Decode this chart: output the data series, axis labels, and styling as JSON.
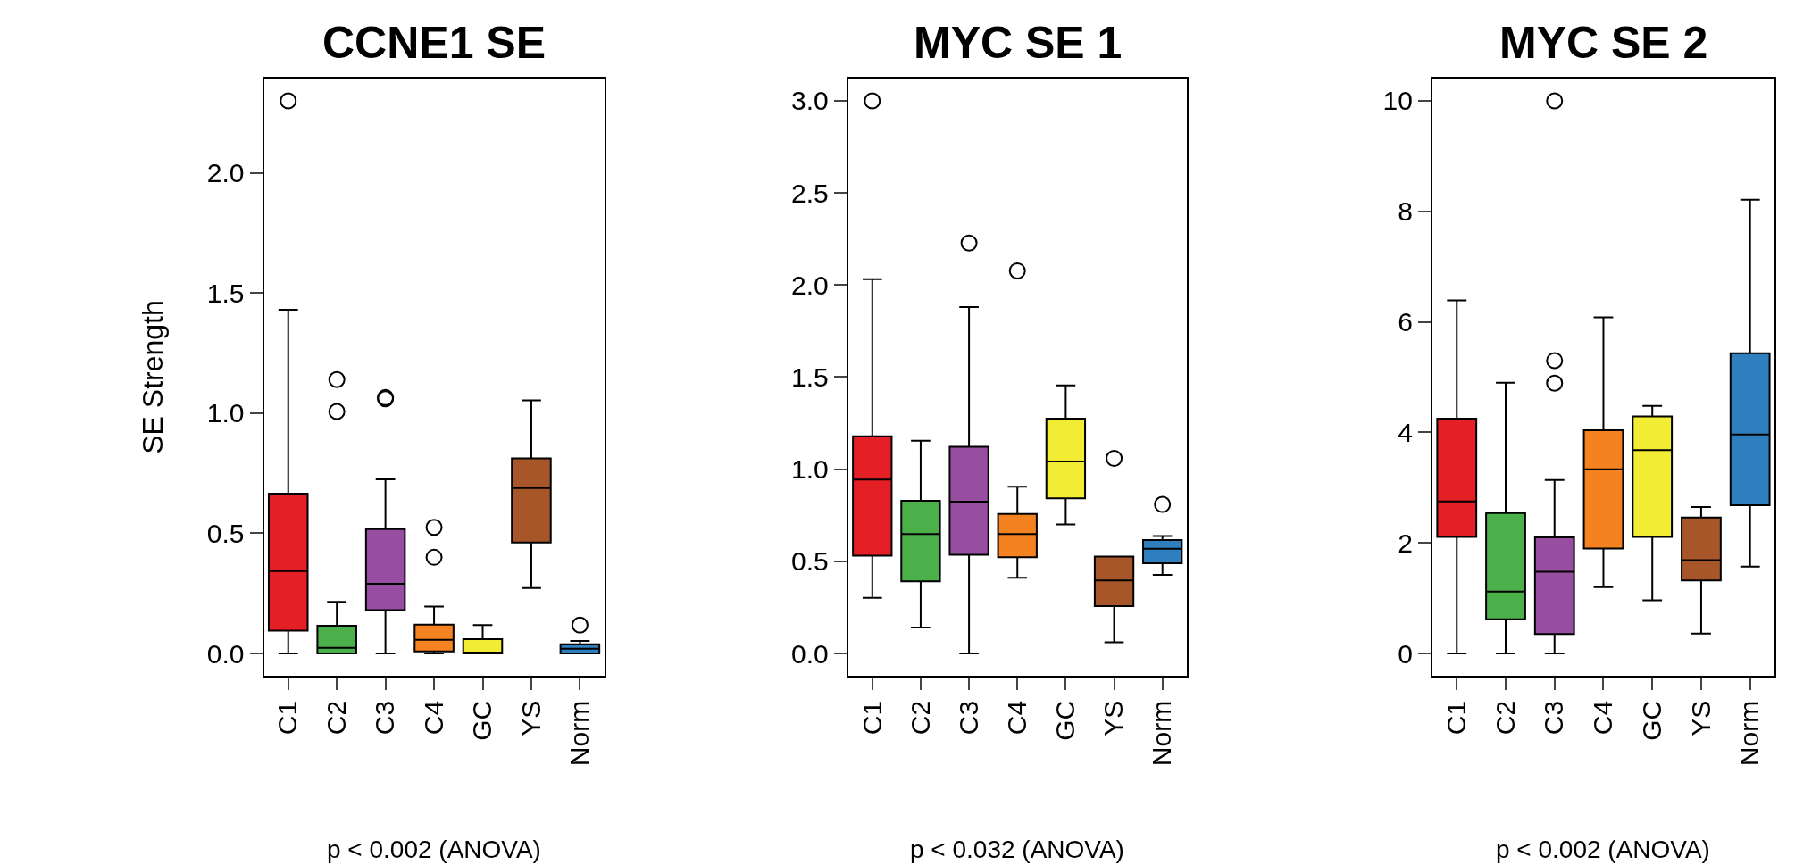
{
  "chart_data": [
    {
      "type": "box",
      "title": "CCNE1 SE",
      "xlabel": "p < 0.002 (ANOVA)",
      "ylabel": "SE Strength",
      "categories": [
        "C1",
        "C2",
        "C3",
        "C4",
        "GC",
        "YS",
        "Norm"
      ],
      "colors": [
        "#e41f26",
        "#4bb04a",
        "#984ea0",
        "#f58220",
        "#f2ec34",
        "#a65628",
        "#2f7fbf"
      ],
      "boxes": [
        {
          "low": 0,
          "q1": 0.095,
          "median": 0.343,
          "q3": 0.665,
          "high": 1.43,
          "outliers": [
            2.3
          ]
        },
        {
          "low": 0,
          "q1": 0,
          "median": 0.023,
          "q3": 0.115,
          "high": 0.215,
          "outliers": [
            1.14,
            1.007
          ]
        },
        {
          "low": 0,
          "q1": 0.18,
          "median": 0.29,
          "q3": 0.517,
          "high": 0.725,
          "outliers": [
            1.06,
            1.065
          ]
        },
        {
          "low": 0,
          "q1": 0.008,
          "median": 0.057,
          "q3": 0.12,
          "high": 0.195,
          "outliers": [
            0.525,
            0.4
          ]
        },
        {
          "low": 0,
          "q1": 0,
          "median": 0,
          "q3": 0.06,
          "high": 0.118
        },
        {
          "low": 0.272,
          "q1": 0.462,
          "median": 0.688,
          "q3": 0.812,
          "high": 1.053
        },
        {
          "low": 0,
          "q1": 0,
          "median": 0.02,
          "q3": 0.038,
          "high": 0.052,
          "outliers": [
            0.118
          ]
        }
      ],
      "ylim": [
        -0.092,
        2.392
      ],
      "yticks": [
        {
          "value": 0,
          "label": "0.0"
        },
        {
          "value": 0.5,
          "label": "0.5"
        },
        {
          "value": 1,
          "label": "1.0"
        },
        {
          "value": 1.5,
          "label": "1.5"
        },
        {
          "value": 2,
          "label": "2.0"
        }
      ],
      "marker": "circle"
    },
    {
      "type": "box",
      "title": "MYC SE 1",
      "xlabel": "p < 0.032 (ANOVA)",
      "categories": [
        "C1",
        "C2",
        "C3",
        "C4",
        "GC",
        "YS",
        "Norm"
      ],
      "colors": [
        "#e41f26",
        "#4bb04a",
        "#984ea0",
        "#f58220",
        "#f2ec34",
        "#a65628",
        "#2f7fbf"
      ],
      "boxes": [
        {
          "low": 0.302,
          "q1": 0.531,
          "median": 0.944,
          "q3": 1.179,
          "high": 2.032,
          "outliers": [
            3.0
          ]
        },
        {
          "low": 0.141,
          "q1": 0.392,
          "median": 0.648,
          "q3": 0.829,
          "high": 1.155
        },
        {
          "low": 0,
          "q1": 0.535,
          "median": 0.824,
          "q3": 1.122,
          "high": 1.88,
          "outliers": [
            2.228
          ]
        },
        {
          "low": 0.411,
          "q1": 0.522,
          "median": 0.648,
          "q3": 0.757,
          "high": 0.905,
          "outliers": [
            2.077
          ]
        },
        {
          "low": 0.7,
          "q1": 0.842,
          "median": 1.042,
          "q3": 1.275,
          "high": 1.455
        },
        {
          "low": 0.061,
          "q1": 0.257,
          "median": 0.396,
          "q3": 0.526,
          "high": 0.526,
          "outliers": [
            1.059
          ]
        },
        {
          "low": 0.426,
          "q1": 0.489,
          "median": 0.568,
          "q3": 0.616,
          "high": 0.637,
          "outliers": [
            0.809
          ]
        }
      ],
      "ylim": [
        -0.12,
        3.12
      ],
      "yticks": [
        {
          "value": 0,
          "label": "0.0"
        },
        {
          "value": 0.5,
          "label": "0.5"
        },
        {
          "value": 1,
          "label": "1.0"
        },
        {
          "value": 1.5,
          "label": "1.5"
        },
        {
          "value": 2,
          "label": "2.0"
        },
        {
          "value": 2.5,
          "label": "2.5"
        },
        {
          "value": 3,
          "label": "3.0"
        }
      ],
      "marker": "circle"
    },
    {
      "type": "box",
      "title": "MYC SE 2",
      "xlabel": "p < 0.002 (ANOVA)",
      "categories": [
        "C1",
        "C2",
        "C3",
        "C4",
        "GC",
        "YS",
        "Norm"
      ],
      "colors": [
        "#e41f26",
        "#4bb04a",
        "#984ea0",
        "#f58220",
        "#f2ec34",
        "#a65628",
        "#2f7fbf"
      ],
      "boxes": [
        {
          "low": 0,
          "q1": 2.11,
          "median": 2.75,
          "q3": 4.25,
          "high": 6.39
        },
        {
          "low": 0,
          "q1": 0.62,
          "median": 1.12,
          "q3": 2.54,
          "high": 4.9
        },
        {
          "low": 0,
          "q1": 0.35,
          "median": 1.48,
          "q3": 2.1,
          "high": 3.14,
          "outliers": [
            10.0,
            5.3,
            4.89
          ]
        },
        {
          "low": 1.2,
          "q1": 1.9,
          "median": 3.33,
          "q3": 4.04,
          "high": 6.08
        },
        {
          "low": 0.96,
          "q1": 2.11,
          "median": 3.68,
          "q3": 4.29,
          "high": 4.48
        },
        {
          "low": 0.36,
          "q1": 1.32,
          "median": 1.69,
          "q3": 2.46,
          "high": 2.65
        },
        {
          "low": 1.57,
          "q1": 2.68,
          "median": 3.96,
          "q3": 5.43,
          "high": 8.21
        }
      ],
      "ylim": [
        -0.4,
        10.4
      ],
      "yticks": [
        0,
        2,
        4,
        6,
        8,
        10
      ],
      "marker": "circle"
    }
  ]
}
